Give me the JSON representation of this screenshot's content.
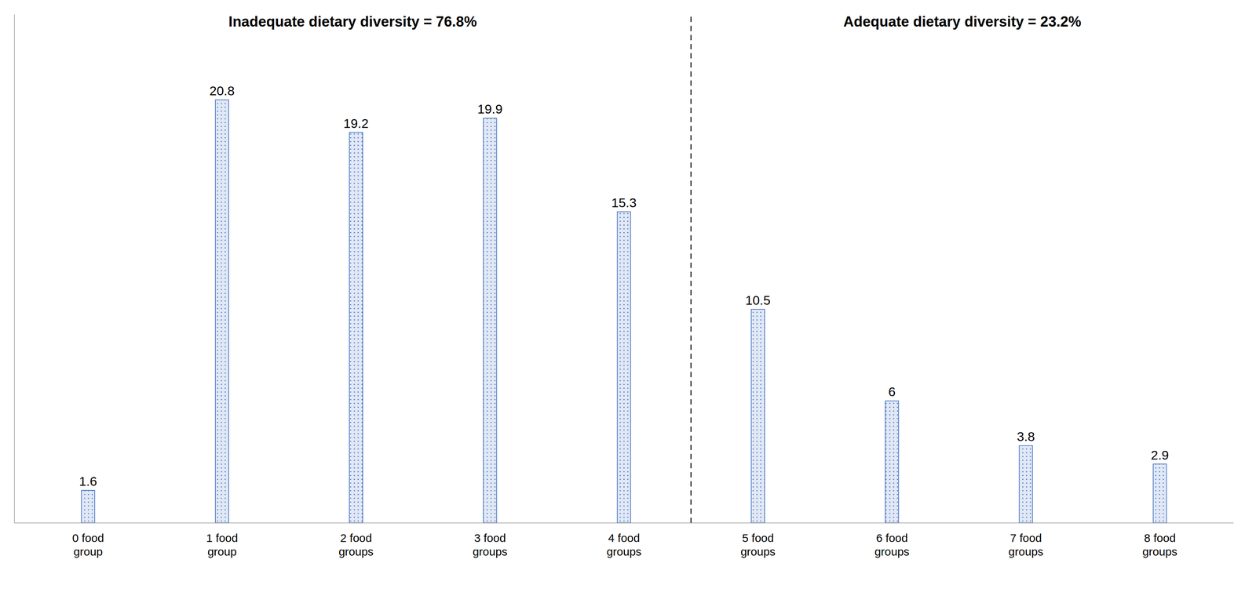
{
  "chart_data": {
    "type": "bar",
    "categories": [
      "0 food\ngroup",
      "1 food\ngroup",
      "2 food\ngroups",
      "3 food\ngroups",
      "4 food\ngroups",
      "5 food\ngroups",
      "6 food\ngroups",
      "7 food\ngroups",
      "8 food\ngroups"
    ],
    "values": [
      1.6,
      20.8,
      19.2,
      19.9,
      15.3,
      10.5,
      6.0,
      3.8,
      2.9
    ],
    "color": "#4472c4",
    "annotations": [
      "Inadequate dietary diversity = 76.8%",
      "Adequate dietary diversity = 23.2%"
    ],
    "ylim": [
      0,
      25
    ],
    "grid": false,
    "data_labels": true,
    "tick_labels": "x"
  }
}
